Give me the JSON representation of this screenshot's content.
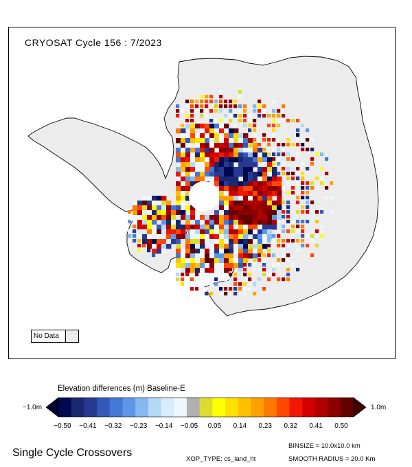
{
  "map": {
    "title": "CRYOSAT Cycle 156 : 7/2023",
    "land_color": "#ececec",
    "no_data_label": "No Data",
    "no_data_color": "#ececec"
  },
  "colorbar": {
    "title": "Elevation differences (m) Baseline-E",
    "left_label": "−1.0m",
    "right_label": "1.0m",
    "tick_labels": [
      "−0.50",
      "−0.41",
      "−0.32",
      "−0.23",
      "−0.14",
      "−0.05",
      "0.05",
      "0.14",
      "0.23",
      "0.32",
      "0.41",
      "0.50"
    ],
    "colors": [
      "#000850",
      "#1a2870",
      "#263b90",
      "#3358b8",
      "#4677d6",
      "#5f97e8",
      "#86b8f2",
      "#b4d8f8",
      "#d8ecfa",
      "#eef7fc",
      "#b0b0b0",
      "#dcdc30",
      "#ffff00",
      "#ffe000",
      "#ffc000",
      "#ffa000",
      "#ff7800",
      "#ff4800",
      "#f01800",
      "#d40000",
      "#b00000",
      "#8c0000",
      "#640000"
    ],
    "under_color": "#000030",
    "over_color": "#400000"
  },
  "footer": {
    "title": "Single Cycle Crossovers",
    "xop_type": "XOP_TYPE: cs_land_ht",
    "binsize": "BINSIZE = 10.0x10.0 km",
    "smooth_radius": "SMOOTH RADIUS = 20.0 Km"
  }
}
